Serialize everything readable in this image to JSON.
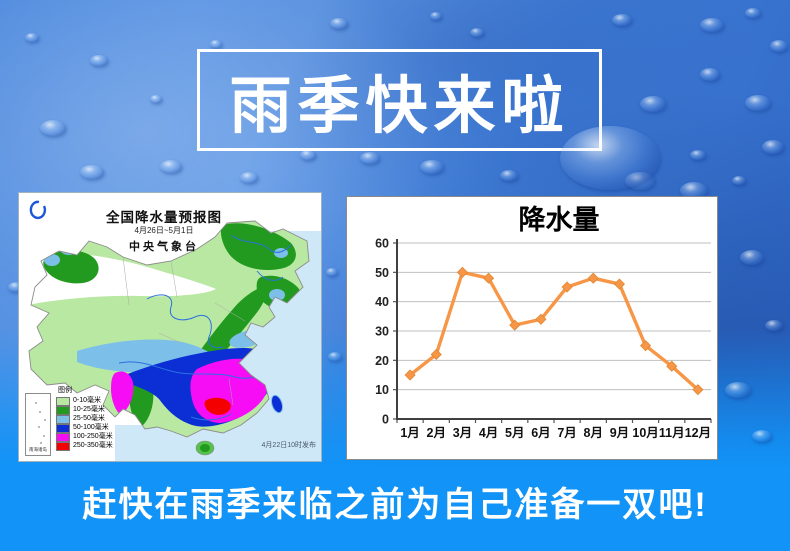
{
  "poster": {
    "title": "雨季快来啦",
    "tagline": "赶快在雨季来临之前为自己准备一双吧!"
  },
  "map_panel": {
    "title": "全国降水量预报图",
    "subtitle": "4月26日~5月1日",
    "agency": "中央气象台",
    "published_note": "4月22日10时发布",
    "inset_label": "南海诸岛",
    "legend": {
      "header": "图例",
      "items": [
        {
          "label": "0-10毫米",
          "color": "#b9e8a2"
        },
        {
          "label": "10-25毫米",
          "color": "#229a1f"
        },
        {
          "label": "25-50毫米",
          "color": "#7cc0ea"
        },
        {
          "label": "50-100毫米",
          "color": "#0b2fd4"
        },
        {
          "label": "100-250毫米",
          "color": "#f60df6"
        },
        {
          "label": "250-350毫米",
          "color": "#f40000"
        }
      ]
    }
  },
  "chart_data": {
    "type": "line",
    "title": "降水量",
    "categories": [
      "1月",
      "2月",
      "3月",
      "4月",
      "5月",
      "6月",
      "7月",
      "8月",
      "9月",
      "10月",
      "11月",
      "12月"
    ],
    "values": [
      15,
      22,
      50,
      48,
      32,
      34,
      45,
      48,
      46,
      25,
      18,
      10
    ],
    "xlabel": "",
    "ylabel": "",
    "ylim": [
      0,
      60
    ],
    "yticks": [
      0,
      10,
      20,
      30,
      40,
      50,
      60
    ],
    "grid": true,
    "legend_position": "none",
    "line_color": "#f79646",
    "marker": "diamond"
  }
}
